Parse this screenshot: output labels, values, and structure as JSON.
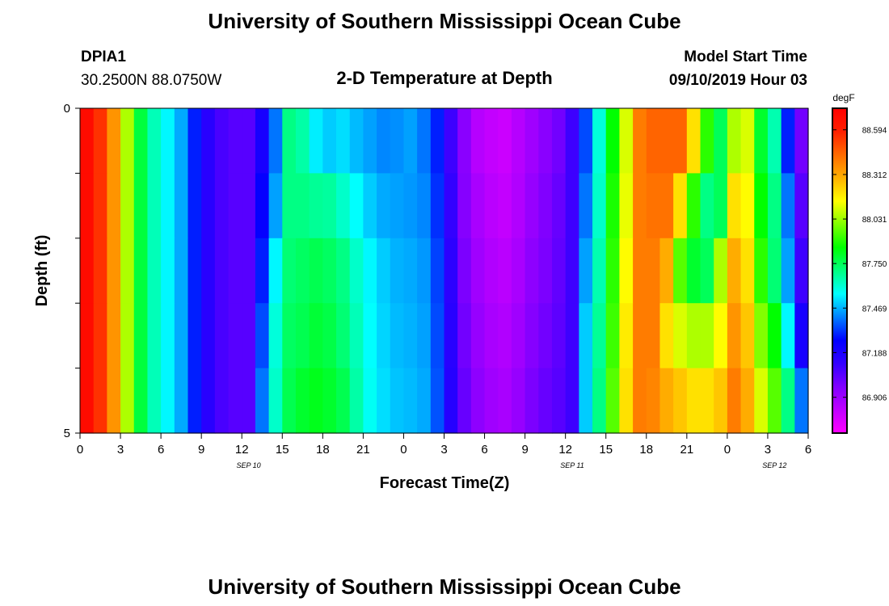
{
  "page": {
    "title": "University of Southern Mississippi Ocean Cube",
    "footer_title": "University of Southern Mississippi Ocean Cube"
  },
  "header": {
    "station": "DPIA1",
    "location": "30.2500N 88.0750W",
    "subtitle": "2-D Temperature at Depth",
    "model_label": "Model Start Time",
    "model_time": "09/10/2019 Hour 03"
  },
  "colors": {
    "background": "#ffffff",
    "text": "#000000",
    "palette": [
      "#ff00ff",
      "#c000ff",
      "#8000ff",
      "#3300ff",
      "#0000ff",
      "#0080ff",
      "#00ffff",
      "#00ff80",
      "#00ff00",
      "#80ff00",
      "#ffff00",
      "#ffb000",
      "#ff6a00",
      "#ff2000",
      "#ff0000"
    ]
  },
  "chart_data": {
    "type": "heatmap",
    "title": "2-D Temperature at Depth",
    "xlabel": "Forecast Time(Z)",
    "ylabel": "Depth (ft)",
    "x_ticks": [
      "0",
      "3",
      "6",
      "9",
      "12",
      "15",
      "18",
      "21",
      "0",
      "3",
      "6",
      "9",
      "12",
      "15",
      "18",
      "21",
      "0",
      "3",
      "6"
    ],
    "day_labels": [
      {
        "label": "SEP 10",
        "hour": 12.5
      },
      {
        "label": "SEP 11",
        "hour": 36.5
      },
      {
        "label": "SEP 12",
        "hour": 51.5
      }
    ],
    "x_range_hours": [
      0,
      54
    ],
    "y_ticks": [
      "0",
      "5"
    ],
    "ylim": [
      0,
      5
    ],
    "depth_levels": 5,
    "colorbar": {
      "unit": "degF",
      "min": 86.68,
      "max": 88.73,
      "tick_values": [
        88.594,
        88.312,
        88.031,
        87.75,
        87.469,
        87.188,
        86.906
      ],
      "tick_labels": [
        "88.594",
        "88.312",
        "88.031",
        "87.750",
        "87.469",
        "87.188",
        "86.906"
      ]
    },
    "column_hours": [
      0,
      1,
      2,
      3,
      4,
      5,
      6,
      7,
      8,
      9,
      10,
      11,
      12,
      13,
      14,
      15,
      16,
      17,
      18,
      19,
      20,
      21,
      22,
      23,
      24,
      25,
      26,
      27,
      28,
      29,
      30,
      31,
      32,
      33,
      34,
      35,
      36,
      37,
      38,
      39,
      40,
      41,
      42,
      43,
      44,
      45,
      46,
      47,
      48,
      49,
      50,
      51,
      52,
      53
    ],
    "temperature_degF": [
      [
        88.68,
        88.55,
        88.35,
        88.05,
        87.78,
        87.64,
        87.55,
        87.46,
        87.3,
        87.15,
        87.08,
        87.05,
        87.05,
        87.2,
        87.4,
        87.7,
        87.66,
        87.54,
        87.5,
        87.52,
        87.48,
        87.45,
        87.42,
        87.43,
        87.45,
        87.4,
        87.3,
        87.1,
        86.95,
        86.85,
        86.82,
        86.8,
        86.85,
        86.9,
        86.95,
        87.0,
        87.1,
        87.35,
        87.6,
        87.85,
        88.1,
        88.4,
        88.45,
        88.45,
        88.45,
        88.2,
        87.9,
        87.75,
        88.05,
        88.1,
        87.8,
        87.65,
        87.3,
        87.0
      ],
      [
        88.68,
        88.55,
        88.35,
        88.05,
        87.78,
        87.64,
        87.55,
        87.46,
        87.3,
        87.15,
        87.08,
        87.05,
        87.05,
        87.25,
        87.45,
        87.7,
        87.7,
        87.68,
        87.67,
        87.62,
        87.56,
        87.5,
        87.46,
        87.45,
        87.44,
        87.42,
        87.32,
        87.12,
        86.96,
        86.88,
        86.84,
        86.82,
        86.86,
        86.92,
        86.97,
        87.02,
        87.1,
        87.4,
        87.62,
        87.88,
        88.12,
        88.4,
        88.42,
        88.42,
        88.2,
        87.9,
        87.7,
        87.75,
        88.2,
        88.15,
        87.85,
        87.7,
        87.4,
        87.05
      ],
      [
        88.68,
        88.55,
        88.35,
        88.05,
        87.78,
        87.64,
        87.55,
        87.46,
        87.3,
        87.15,
        87.08,
        87.05,
        87.05,
        87.3,
        87.55,
        87.72,
        87.74,
        87.76,
        87.74,
        87.7,
        87.62,
        87.55,
        87.5,
        87.47,
        87.46,
        87.44,
        87.34,
        87.14,
        86.98,
        86.9,
        86.86,
        86.84,
        86.88,
        86.94,
        86.98,
        87.03,
        87.1,
        87.45,
        87.65,
        87.9,
        88.15,
        88.4,
        88.4,
        88.3,
        87.95,
        87.8,
        87.75,
        88.05,
        88.3,
        88.2,
        87.9,
        87.72,
        87.45,
        87.1
      ],
      [
        88.68,
        88.55,
        88.35,
        88.05,
        87.78,
        87.64,
        87.55,
        87.46,
        87.3,
        87.15,
        87.08,
        87.05,
        87.05,
        87.35,
        87.6,
        87.74,
        87.76,
        87.79,
        87.77,
        87.72,
        87.64,
        87.56,
        87.51,
        87.48,
        87.47,
        87.45,
        87.35,
        87.15,
        87.0,
        86.92,
        86.88,
        86.86,
        86.9,
        86.96,
        87.0,
        87.04,
        87.1,
        87.5,
        87.68,
        87.92,
        88.18,
        88.4,
        88.4,
        88.2,
        88.1,
        88.05,
        88.05,
        88.15,
        88.35,
        88.25,
        88.0,
        87.85,
        87.55,
        87.2
      ],
      [
        88.68,
        88.55,
        88.35,
        88.05,
        87.78,
        87.64,
        87.55,
        87.46,
        87.3,
        87.15,
        87.08,
        87.05,
        87.05,
        87.4,
        87.62,
        87.76,
        87.8,
        87.82,
        87.8,
        87.76,
        87.66,
        87.57,
        87.52,
        87.49,
        87.48,
        87.46,
        87.36,
        87.16,
        87.02,
        86.94,
        86.9,
        86.88,
        86.92,
        86.98,
        87.02,
        87.05,
        87.1,
        87.5,
        87.7,
        87.95,
        88.2,
        88.4,
        88.38,
        88.3,
        88.25,
        88.2,
        88.2,
        88.25,
        88.4,
        88.3,
        88.1,
        87.95,
        87.7,
        87.4
      ]
    ]
  }
}
